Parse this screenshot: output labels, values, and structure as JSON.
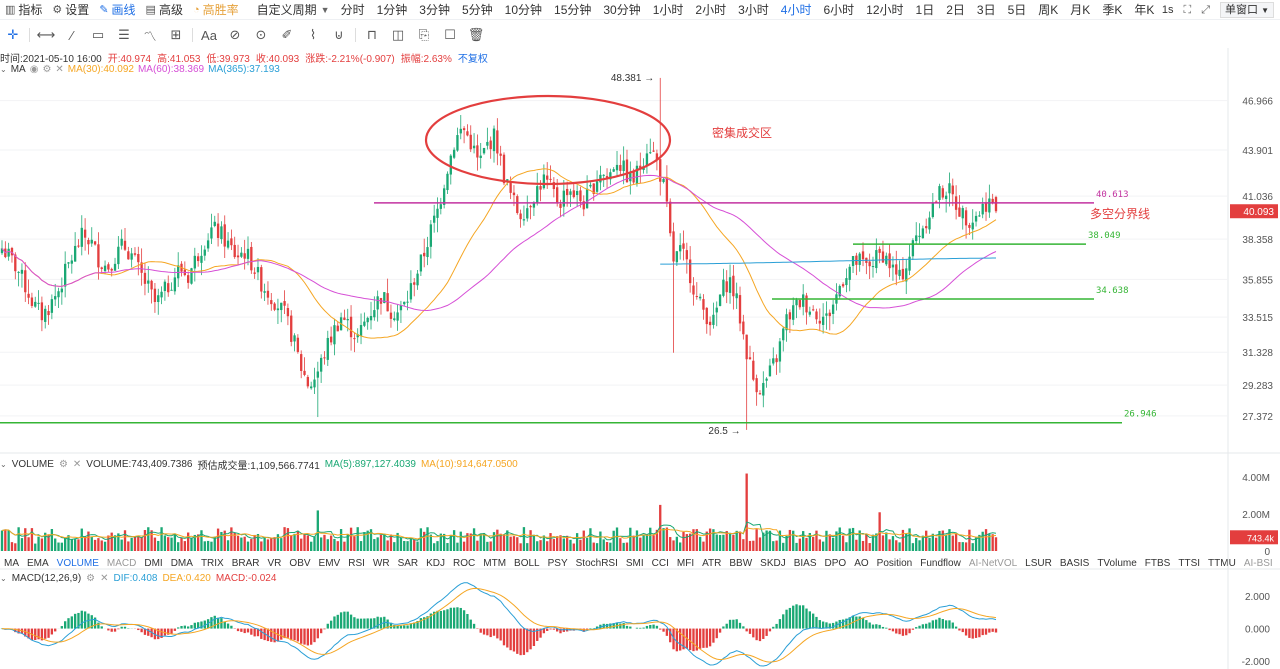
{
  "toolbar": {
    "items": [
      {
        "label": "指标",
        "icon": "indicator-icon"
      },
      {
        "label": "设置",
        "icon": "gear-icon"
      },
      {
        "label": "画线",
        "icon": "pen-icon"
      },
      {
        "label": "高级",
        "icon": "advanced-icon"
      },
      {
        "label": "高胜率",
        "icon": "winrate-icon"
      }
    ],
    "custom_period": "自定义周期",
    "periods": [
      "分时",
      "1分钟",
      "3分钟",
      "5分钟",
      "10分钟",
      "15分钟",
      "30分钟",
      "1小时",
      "2小时",
      "3小时",
      "4小时",
      "6小时",
      "12小时",
      "1日",
      "2日",
      "3日",
      "5日",
      "周K",
      "月K",
      "季K",
      "年K"
    ],
    "active_period": "4小时",
    "right": {
      "interval": "1s",
      "window_select": "单窗口"
    }
  },
  "drawing_tools": [
    "crosshair-icon",
    "horizontal-line-icon",
    "trend-line-icon",
    "rectangle-icon",
    "parallel-channel-icon",
    "wave-icon",
    "price-range-icon",
    "text-icon",
    "fib-icon",
    "pattern-icon",
    "brush-icon",
    "measure-icon",
    "magnet-icon",
    "lock-icon",
    "visibility-icon",
    "copy-icon",
    "note-icon",
    "trash-icon"
  ],
  "text_tool_label": "Aa",
  "ohlc_info": {
    "time": "时间:2021-05-10 16:00",
    "open": "开:40.974",
    "high": "高:41.053",
    "low": "低:39.973",
    "close": "收:40.093",
    "change": "涨跌:-2.21%(-0.907)",
    "amplitude": "振幅:2.63%",
    "adjust": "不复权"
  },
  "ma_legend": {
    "name": "MA",
    "ma30": "MA(30):40.092",
    "ma60": "MA(60):38.369",
    "ma365": "MA(365):37.193"
  },
  "volume_legend": {
    "name": "VOLUME",
    "vol": "VOLUME:743,409.7386",
    "est": "预估成交量:1,109,566.7741",
    "ma5": "MA(5):897,127.4039",
    "ma10": "MA(10):914,647.0500"
  },
  "macd_legend": {
    "name": "MACD(12,26,9)",
    "dif": "DIF:0.408",
    "dea": "DEA:0.420",
    "macd": "MACD:-0.024"
  },
  "indicator_tabs": [
    "MA",
    "EMA",
    "VOLUME",
    "MACD",
    "DMI",
    "DMA",
    "TRIX",
    "BRAR",
    "VR",
    "OBV",
    "EMV",
    "RSI",
    "WR",
    "SAR",
    "KDJ",
    "ROC",
    "MTM",
    "BOLL",
    "PSY",
    "StochRSI",
    "SMI",
    "CCI",
    "MFI",
    "ATR",
    "BBW",
    "SKDJ",
    "BIAS",
    "DPO",
    "AO",
    "Position",
    "Fundflow",
    "AI-NetVOL",
    "LSUR",
    "BASIS",
    "TVolume",
    "FTBS",
    "TTSI",
    "TTMU",
    "AI-BSI"
  ],
  "indicator_tabs_active": [
    "VOLUME"
  ],
  "indicator_tabs_dim": [
    "MACD",
    "AI-NetVOL",
    "AI-BSI"
  ],
  "colors": {
    "up": "#1aa874",
    "down": "#e33e3e",
    "ma30": "#f5a623",
    "ma60": "#d64fd6",
    "ma365": "#2a9fd6",
    "accent": "#1f6fe5",
    "annotation": "#e33e3e",
    "support": "#35b535",
    "resistance": "#c233a0"
  },
  "chart_data": [
    {
      "type": "candlestick",
      "title": "",
      "ylim": [
        25.5,
        48.5
      ],
      "y_ticks": [
        "46.966",
        "43.901",
        "41.036",
        "38.358",
        "35.855",
        "33.515",
        "31.328",
        "29.283",
        "27.372"
      ],
      "last_price": "40.093",
      "series": [
        {
          "name": "MA(30)",
          "value": 40.092
        },
        {
          "name": "MA(60)",
          "value": 38.369
        },
        {
          "name": "MA(365)",
          "value": 37.193
        }
      ],
      "close_path": [
        37.8,
        37.2,
        36.4,
        35.3,
        34.2,
        33.6,
        34.3,
        35.2,
        36.5,
        37.6,
        38.6,
        38.2,
        37.1,
        36.6,
        37.3,
        38.0,
        37.4,
        36.3,
        35.4,
        34.3,
        35.0,
        35.8,
        36.6,
        36.0,
        37.2,
        38.2,
        39.0,
        38.7,
        38.0,
        37.3,
        37.6,
        36.8,
        35.7,
        35.0,
        34.4,
        33.6,
        32.2,
        30.4,
        29.2,
        30.0,
        31.4,
        32.6,
        33.6,
        32.9,
        32.2,
        33.3,
        34.2,
        34.9,
        34.0,
        33.8,
        34.4,
        35.9,
        37.1,
        38.8,
        40.3,
        42.6,
        44.4,
        45.3,
        44.4,
        43.0,
        44.2,
        44.8,
        42.5,
        41.0,
        39.9,
        40.4,
        41.3,
        42.1,
        41.4,
        40.6,
        41.6,
        41.1,
        40.6,
        41.5,
        42.6,
        42.1,
        43.4,
        42.6,
        41.9,
        42.9,
        44.4,
        43.2,
        41.4,
        37.0,
        37.6,
        36.5,
        34.6,
        33.8,
        33.1,
        35.1,
        35.9,
        34.3,
        31.7,
        29.6,
        29.0,
        30.0,
        31.2,
        33.3,
        34.0,
        34.6,
        34.1,
        33.7,
        33.4,
        34.5,
        35.9,
        36.7,
        37.0,
        36.6,
        37.1,
        37.5,
        36.7,
        35.8,
        36.9,
        38.4,
        39.2,
        40.3,
        41.2,
        41.5,
        40.6,
        39.8,
        39.6,
        40.1,
        40.8,
        40.1
      ],
      "volume": {
        "ylim": [
          0,
          4500000
        ],
        "y_ticks": [
          "4.00M",
          "2.00M",
          "0"
        ],
        "last": "743.4k"
      },
      "macd": {
        "ylim": [
          -2.3,
          2.8
        ],
        "y_ticks": [
          "2.000",
          "0.000",
          "-2.000"
        ],
        "dif": 0.408,
        "dea": 0.42,
        "macd": -0.024
      }
    }
  ],
  "annotations": {
    "high_label": "48.381",
    "low_label": "26.5",
    "cluster_label": "密集成交区",
    "bull_bear_line_label": "多空分界线",
    "levels": [
      {
        "value": 40.613,
        "label": "40.613",
        "color": "#c233a0"
      },
      {
        "value": 38.049,
        "label": "38.049",
        "color": "#35b535"
      },
      {
        "value": 34.638,
        "label": "34.638",
        "color": "#35b535"
      },
      {
        "value": 26.946,
        "label": "26.946",
        "color": "#35b535"
      }
    ]
  }
}
